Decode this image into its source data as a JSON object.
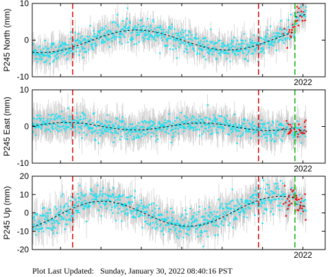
{
  "footer": {
    "label": "Plot Last Updated:",
    "timestamp": "Sunday, January 30, 2022 08:40:16 PST"
  },
  "colors": {
    "observations": "#22e0f0",
    "observations_recent": "#ee1111",
    "error_bars": "#c8c8c8",
    "model_fit": "#000000",
    "event_red": "#dd1111",
    "event_green": "#11bb11"
  },
  "chart_data": [
    {
      "type": "scatter",
      "ylabel": "P245 North (mm)",
      "ylim": [
        -10,
        10
      ],
      "yticks": [
        -10,
        0,
        10
      ],
      "xlim": [
        2015.3,
        2022.55
      ],
      "xtick_labels": [
        {
          "x": 2022.0,
          "label": "2022"
        }
      ],
      "event_lines_red": [
        2016.3,
        2020.9
      ],
      "event_lines_green": [
        2021.8
      ],
      "offset_at_green": 4.0,
      "fit": {
        "trend": 0.15,
        "amplitude": 2.9,
        "period": 4.6,
        "phase": -2.6
      },
      "noise_sd": 1.6,
      "error_sd": 2.8,
      "recent_from": 2021.5,
      "grid": false
    },
    {
      "type": "scatter",
      "ylabel": "P245 East (mm)",
      "ylim": [
        -10,
        10
      ],
      "yticks": [
        -10,
        0,
        10
      ],
      "xlim": [
        2015.3,
        2022.55
      ],
      "xtick_labels": [
        {
          "x": 2022.0,
          "label": "2022"
        }
      ],
      "event_lines_red": [
        2016.3,
        2020.9
      ],
      "event_lines_green": [
        2021.8
      ],
      "offset_at_green": -1.0,
      "fit": {
        "trend": -0.05,
        "amplitude": 1.0,
        "period": 3.3,
        "phase": 1.8
      },
      "noise_sd": 1.4,
      "error_sd": 3.2,
      "recent_from": 2021.5,
      "grid": false
    },
    {
      "type": "scatter",
      "ylabel": "P245 Up (mm)",
      "ylim": [
        -20,
        20
      ],
      "yticks": [
        -20,
        -10,
        0,
        10,
        20
      ],
      "xlim": [
        2015.3,
        2022.55
      ],
      "xtick_labels": [
        {
          "x": 2022.0,
          "label": "2022"
        }
      ],
      "event_lines_red": [
        2016.3,
        2020.9
      ],
      "event_lines_green": [
        2021.8
      ],
      "offset_at_green": -3.0,
      "fit": {
        "trend": 0.6,
        "amplitude": 7.5,
        "period": 4.4,
        "phase": -1.0
      },
      "noise_sd": 4.0,
      "error_sd": 6.5,
      "recent_from": 2021.5,
      "grid": false
    }
  ]
}
